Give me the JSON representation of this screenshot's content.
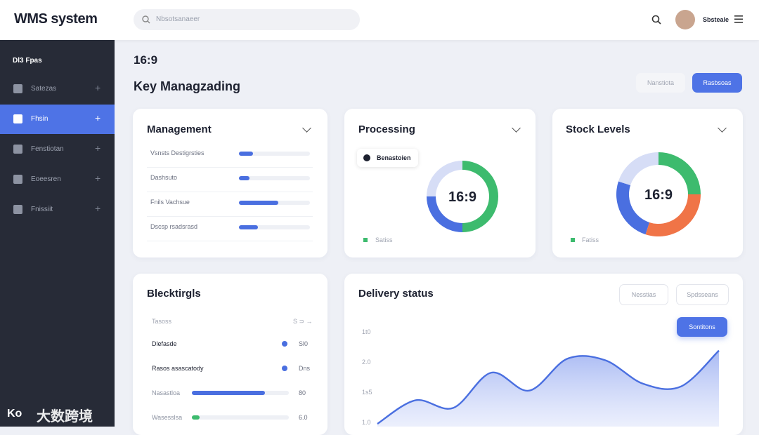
{
  "header": {
    "title": "WMS system",
    "search_placeholder": "Nbsotsanaeer",
    "user_name": "Sbsteale"
  },
  "sidebar": {
    "heading": "Dl3 Fpas",
    "items": [
      "Satezas",
      "Fhsin",
      "Fenstiotan",
      "Eoeesren",
      "Fnissiit"
    ],
    "active_index": 1
  },
  "page": {
    "ratio": "16:9",
    "title": "Key Managzading",
    "buttons": [
      "Nanstiota",
      "Rasbsoas"
    ]
  },
  "management": {
    "title": "Management",
    "rows": [
      {
        "label": "Vsnsts Destigrsties",
        "progress": 20
      },
      {
        "label": "Dashsuto",
        "progress": 15
      },
      {
        "label": "Fnils Vachsue",
        "progress": 55
      },
      {
        "label": "Dscsp rsadsrasd",
        "progress": 27
      }
    ]
  },
  "processing": {
    "title": "Processing",
    "badge": "Benastoien",
    "center": "16:9",
    "legend": "Satiss",
    "segments": [
      {
        "value": 50,
        "color": "#3dbb6e"
      },
      {
        "value": 25,
        "color": "#4a6fe0"
      },
      {
        "value": 25,
        "color": "#d6ddf6"
      }
    ]
  },
  "stock": {
    "title": "Stock Levels",
    "center": "16:9",
    "legend": "Fatiss",
    "segments": [
      {
        "value": 25,
        "color": "#3dbb6e"
      },
      {
        "value": 30,
        "color": "#f07447"
      },
      {
        "value": 25,
        "color": "#4a6fe0"
      },
      {
        "value": 20,
        "color": "#d6ddf6"
      }
    ]
  },
  "blocks": {
    "title": "Blecktirgls",
    "header_left": "Tasoss",
    "header_right": "S ⊃ →",
    "rows": [
      {
        "label": "Dlefasde",
        "value_text": "Sl0"
      },
      {
        "label": "Rasos asascatody",
        "value_text": "Dns"
      },
      {
        "label": "Nasastloa",
        "value_text": "80",
        "progress": 75,
        "color": "#4a6fe0"
      },
      {
        "label": "Wasesslsa",
        "value_text": "6.0",
        "progress": 8,
        "color": "#3dbb6e"
      }
    ]
  },
  "delivery": {
    "title": "Delivery status",
    "buttons": [
      "Nesstias",
      "Spdsseans"
    ],
    "action": "Sontitons",
    "y_labels": [
      "1t0",
      "2.0",
      "1s5",
      "1.0"
    ],
    "ylim": [
      0,
      140
    ],
    "values": [
      4,
      38,
      27,
      78,
      52,
      98,
      96,
      62,
      58,
      110
    ]
  },
  "watermark": "大数跨境"
}
